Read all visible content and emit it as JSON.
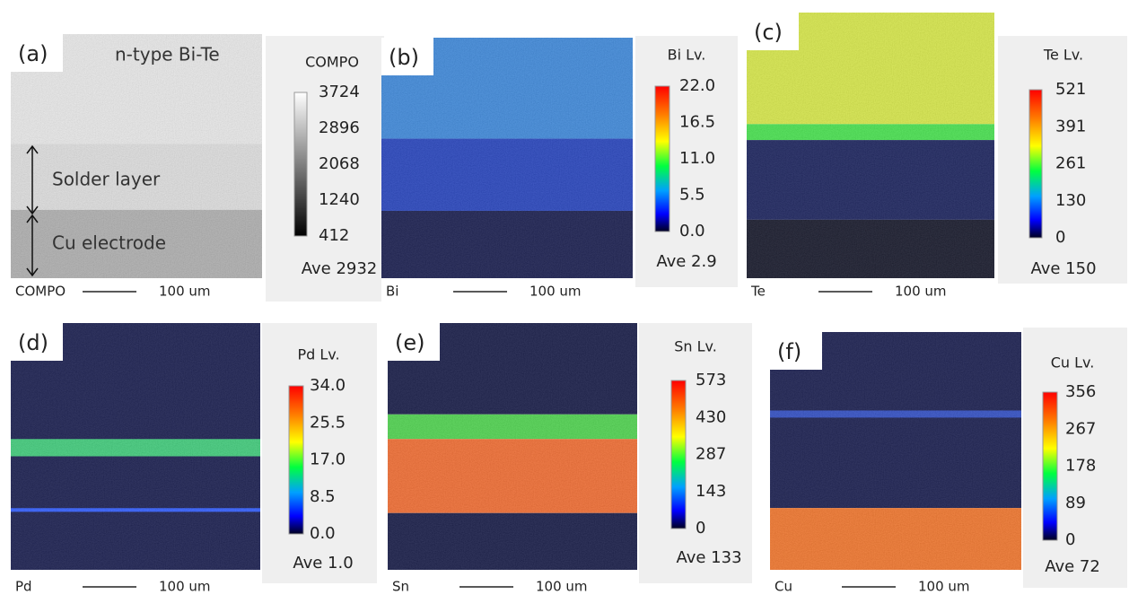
{
  "panels": [
    {
      "label": "(a)",
      "element": "COMPO",
      "scale_title": "COMPO",
      "ticks": [
        "3724",
        "2896",
        "2068",
        "1240",
        "412"
      ],
      "average": "Ave 2932",
      "scale_bar": "100 um"
    },
    {
      "label": "(b)",
      "element": "Bi",
      "scale_title": "Bi  Lv.",
      "ticks": [
        "22.0",
        "16.5",
        "11.0",
        "5.5",
        "0.0"
      ],
      "average": "Ave 2.9",
      "scale_bar": "100 um"
    },
    {
      "label": "(c)",
      "element": "Te",
      "scale_title": "Te  Lv.",
      "ticks": [
        "521",
        "391",
        "261",
        "130",
        "0"
      ],
      "average": "Ave 150",
      "scale_bar": "100 um"
    },
    {
      "label": "(d)",
      "element": "Pd",
      "scale_title": "Pd  Lv.",
      "ticks": [
        "34.0",
        "25.5",
        "17.0",
        "8.5",
        "0.0"
      ],
      "average": "Ave 1.0",
      "scale_bar": "100 um"
    },
    {
      "label": "(e)",
      "element": "Sn",
      "scale_title": "Sn  Lv.",
      "ticks": [
        "573",
        "430",
        "287",
        "143",
        "0"
      ],
      "average": "Ave 133",
      "scale_bar": "100 um"
    },
    {
      "label": "(f)",
      "element": "Cu",
      "scale_title": "Cu  Lv.",
      "ticks": [
        "356",
        "267",
        "178",
        "89",
        "0"
      ],
      "average": "Ave 72",
      "scale_bar": "100 um"
    }
  ],
  "annotations": [
    "n-type Bi-Te",
    "Solder layer",
    "Cu electrode"
  ]
}
